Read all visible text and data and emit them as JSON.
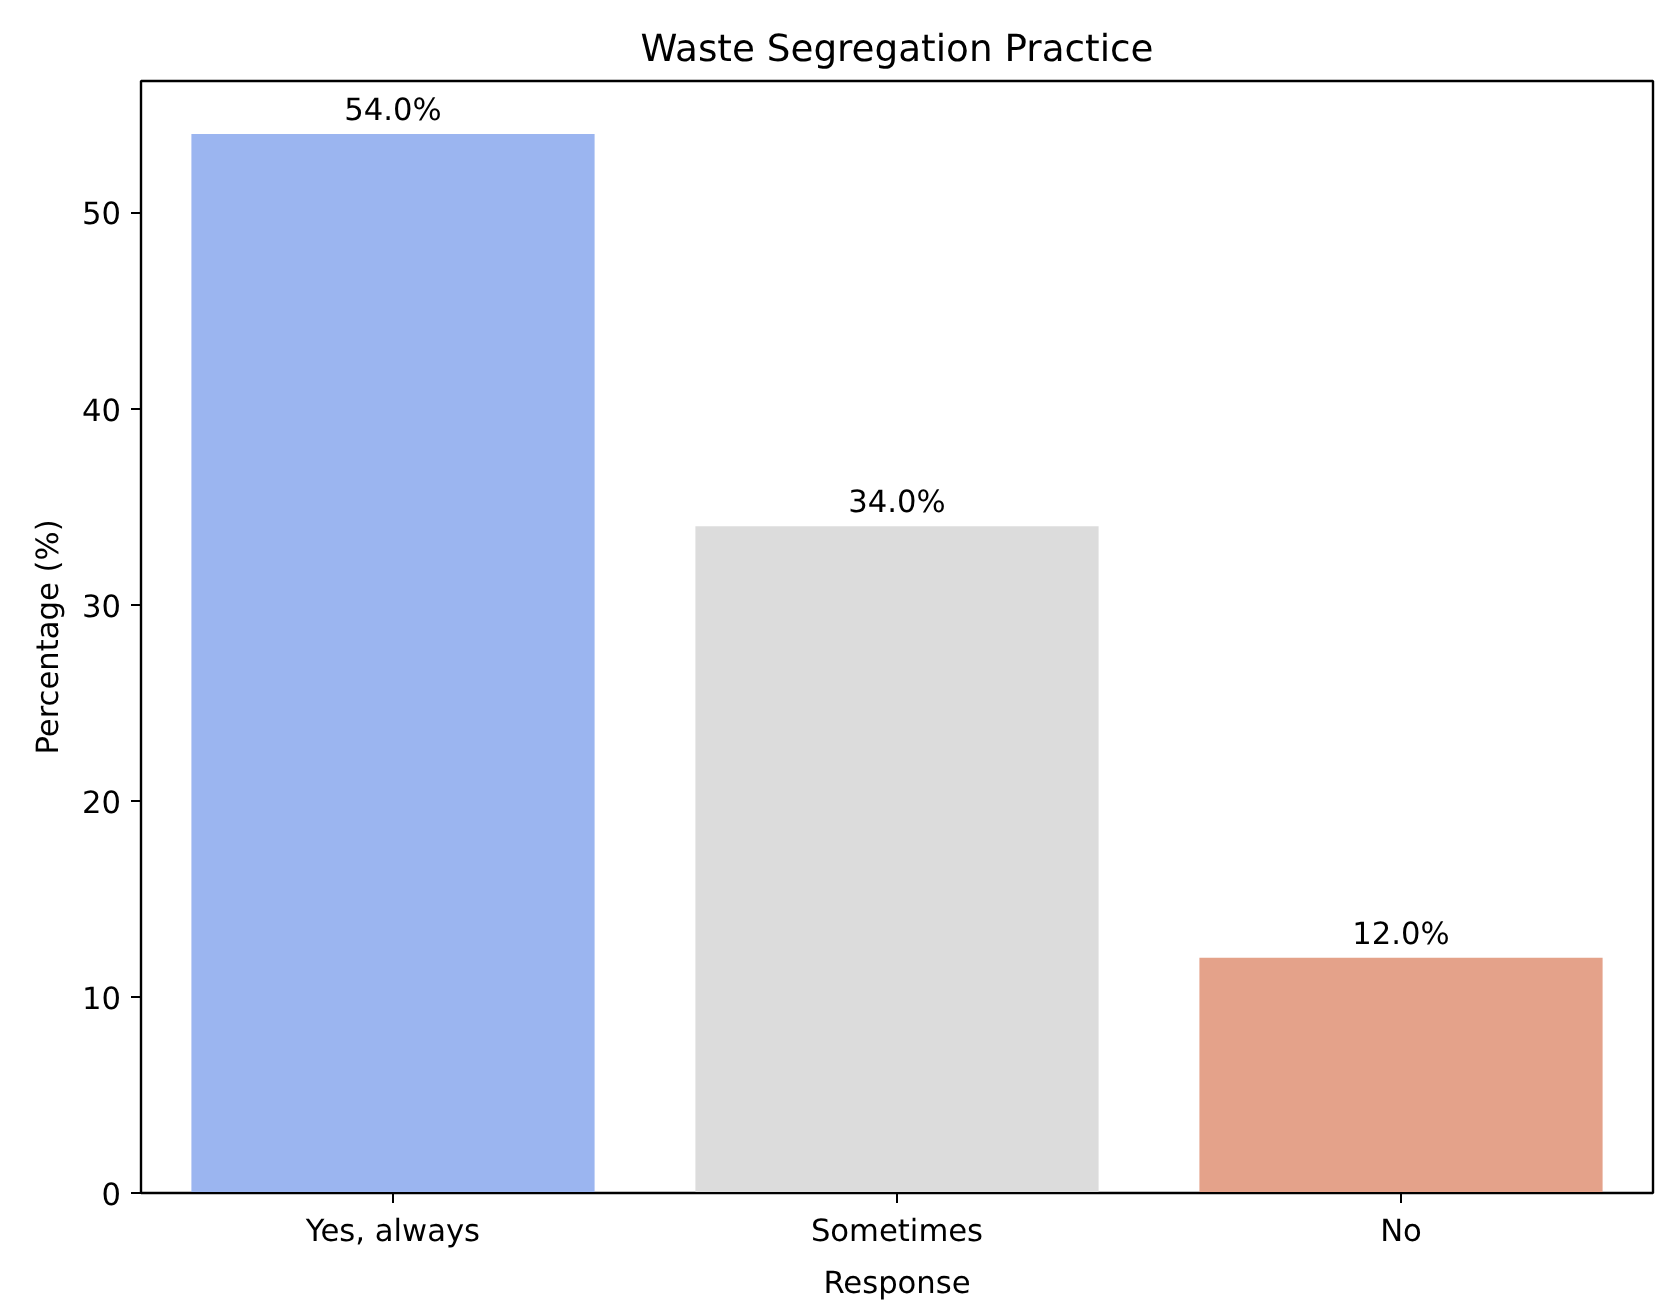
{
  "chart_data": {
    "type": "bar",
    "title": "Waste Segregation Practice",
    "xlabel": "Response",
    "ylabel": "Percentage (%)",
    "categories": [
      "Yes, always",
      "Sometimes",
      "No"
    ],
    "values": [
      54.0,
      34.0,
      12.0
    ],
    "colors": [
      "#9bb5f0",
      "#dcdcdc",
      "#e4a28a"
    ],
    "value_labels": [
      "54.0%",
      "34.0%",
      "12.0%"
    ],
    "ylim": [
      0,
      56.7
    ],
    "yticks": [
      0,
      10,
      20,
      30,
      40,
      50
    ],
    "grid": false
  }
}
